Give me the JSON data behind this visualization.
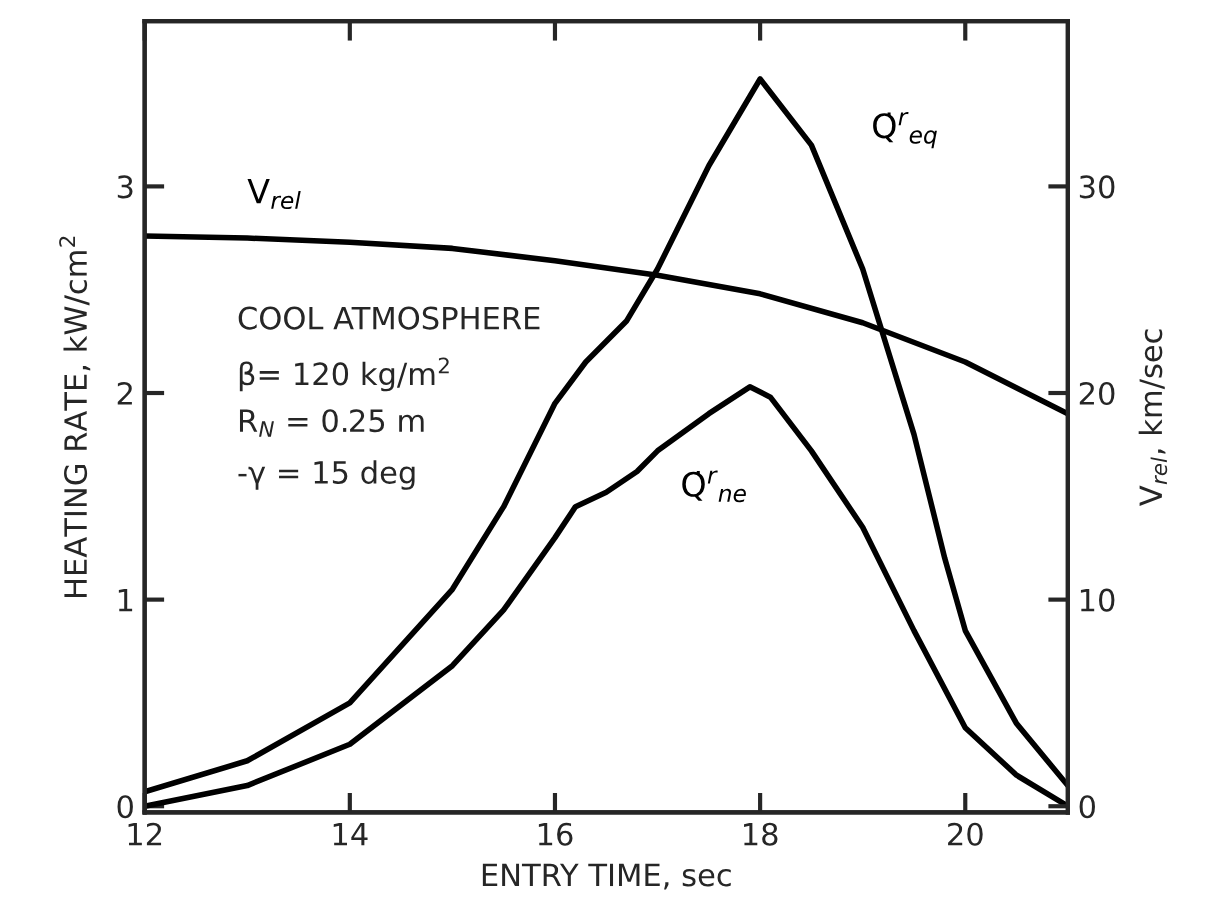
{
  "chart_data": {
    "type": "line",
    "xlabel": "ENTRY TIME, sec",
    "ylabel": "HEATING RATE, kW/cm$^{2}$",
    "y2label": "V$_{rel}$, km/sec",
    "xlim": [
      12,
      21
    ],
    "xticks": [
      12,
      14,
      16,
      18,
      20
    ],
    "ylim": [
      -0.03,
      3.8
    ],
    "yticks": [
      0,
      1,
      2,
      3
    ],
    "y2lim": [
      -0.3,
      38
    ],
    "y2ticks": [
      0,
      10,
      20,
      30
    ],
    "grid": false,
    "legend": false,
    "marker": "none",
    "line_style": "solid",
    "annotations": [
      "COOL ATMOSPHERE",
      "β= 120 kg/m$^{2}$",
      "R$_{N}$ = 0.25 m",
      "-γ = 15 deg"
    ],
    "series": [
      {
        "name": "Q̇$^{r}$$_{eq}$",
        "color": "#000000",
        "x": [
          12,
          13,
          14,
          15,
          15.5,
          16,
          16.3,
          16.7,
          17,
          17.5,
          18,
          18.5,
          19,
          19.5,
          19.8,
          20,
          20.5,
          21
        ],
        "values": [
          0.07,
          0.22,
          0.5,
          1.05,
          1.45,
          1.95,
          2.15,
          2.35,
          2.6,
          3.1,
          3.52,
          3.2,
          2.6,
          1.8,
          1.2,
          0.85,
          0.4,
          0.1
        ]
      },
      {
        "name": "Q̇$^{r}$$_{ne}$",
        "color": "#000000",
        "x": [
          12,
          13,
          14,
          15,
          15.5,
          16,
          16.2,
          16.5,
          16.8,
          17,
          17.5,
          17.9,
          18.1,
          18.5,
          19,
          19.5,
          20,
          20.5,
          21
        ],
        "values": [
          0.0,
          0.1,
          0.3,
          0.68,
          0.95,
          1.3,
          1.45,
          1.52,
          1.62,
          1.72,
          1.9,
          2.03,
          1.98,
          1.72,
          1.35,
          0.85,
          0.38,
          0.15,
          0.0
        ]
      },
      {
        "name": "V$_{rel}$",
        "color": "#000000",
        "axis": "y2",
        "x": [
          12,
          13,
          14,
          15,
          16,
          17,
          18,
          19,
          20,
          21
        ],
        "values": [
          27.6,
          27.5,
          27.3,
          27.0,
          26.4,
          25.7,
          24.8,
          23.4,
          21.5,
          19.0
        ]
      }
    ]
  }
}
